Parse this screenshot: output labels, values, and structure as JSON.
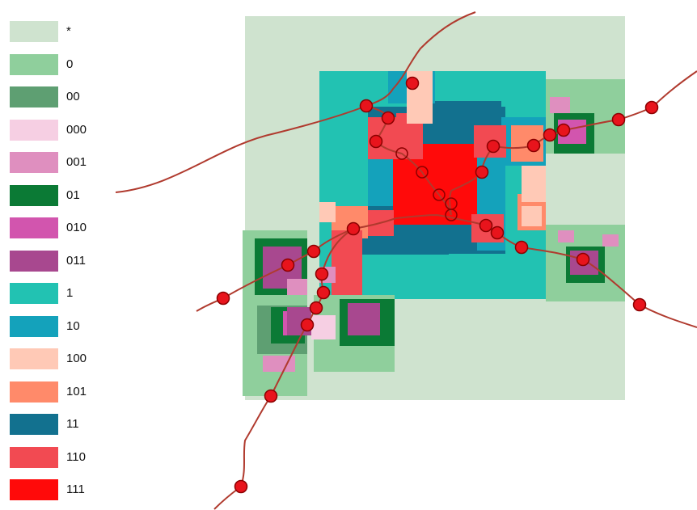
{
  "legend": {
    "items": [
      {
        "label": "*",
        "color": "#cfe3cf"
      },
      {
        "label": "0",
        "color": "#8fcf9c"
      },
      {
        "label": "00",
        "color": "#5e9f72"
      },
      {
        "label": "000",
        "color": "#f6cfe3"
      },
      {
        "label": "001",
        "color": "#df8fbf"
      },
      {
        "label": "01",
        "color": "#0b7a35"
      },
      {
        "label": "010",
        "color": "#d255ae"
      },
      {
        "label": "011",
        "color": "#a8488f"
      },
      {
        "label": "1",
        "color": "#22c2b2"
      },
      {
        "label": "10",
        "color": "#14a2bb"
      },
      {
        "label": "100",
        "color": "#ffc9b6"
      },
      {
        "label": "101",
        "color": "#ff8a6a"
      },
      {
        "label": "11",
        "color": "#12718f"
      },
      {
        "label": "110",
        "color": "#f24a52"
      },
      {
        "label": "111",
        "color": "#ff0a0a"
      }
    ]
  },
  "map": {
    "road_color": "#b03a2e",
    "station_color": "#e8141c",
    "station_stroke": "#8b0000"
  }
}
